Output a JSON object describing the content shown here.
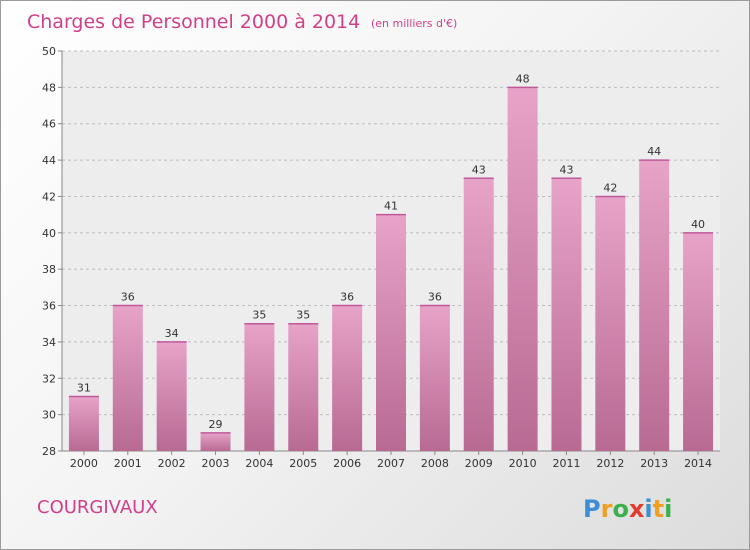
{
  "chart_data": {
    "type": "bar",
    "title": "Charges de Personnel 2000 à 2014",
    "subtitle": "(en milliers d'€)",
    "categories": [
      "2000",
      "2001",
      "2002",
      "2003",
      "2004",
      "2005",
      "2006",
      "2007",
      "2008",
      "2009",
      "2010",
      "2011",
      "2012",
      "2013",
      "2014"
    ],
    "values": [
      31,
      36,
      34,
      29,
      35,
      35,
      36,
      41,
      36,
      43,
      48,
      43,
      42,
      44,
      40
    ],
    "ylim": [
      28,
      50
    ],
    "yticks": [
      28,
      30,
      32,
      34,
      36,
      38,
      40,
      42,
      44,
      46,
      48,
      50
    ],
    "grid": true,
    "bar_color": "#e7a3c8",
    "bar_color_dark": "#b86a93"
  },
  "commune": "COURGIVAUX",
  "logo": {
    "letters": [
      "P",
      "r",
      "o",
      "x",
      "i",
      "t",
      "i"
    ],
    "colors": [
      "#3c8fd4",
      "#f0a020",
      "#3cb04a",
      "#e43c2c",
      "#3c8fd4",
      "#f0a020",
      "#3cb04a"
    ]
  }
}
